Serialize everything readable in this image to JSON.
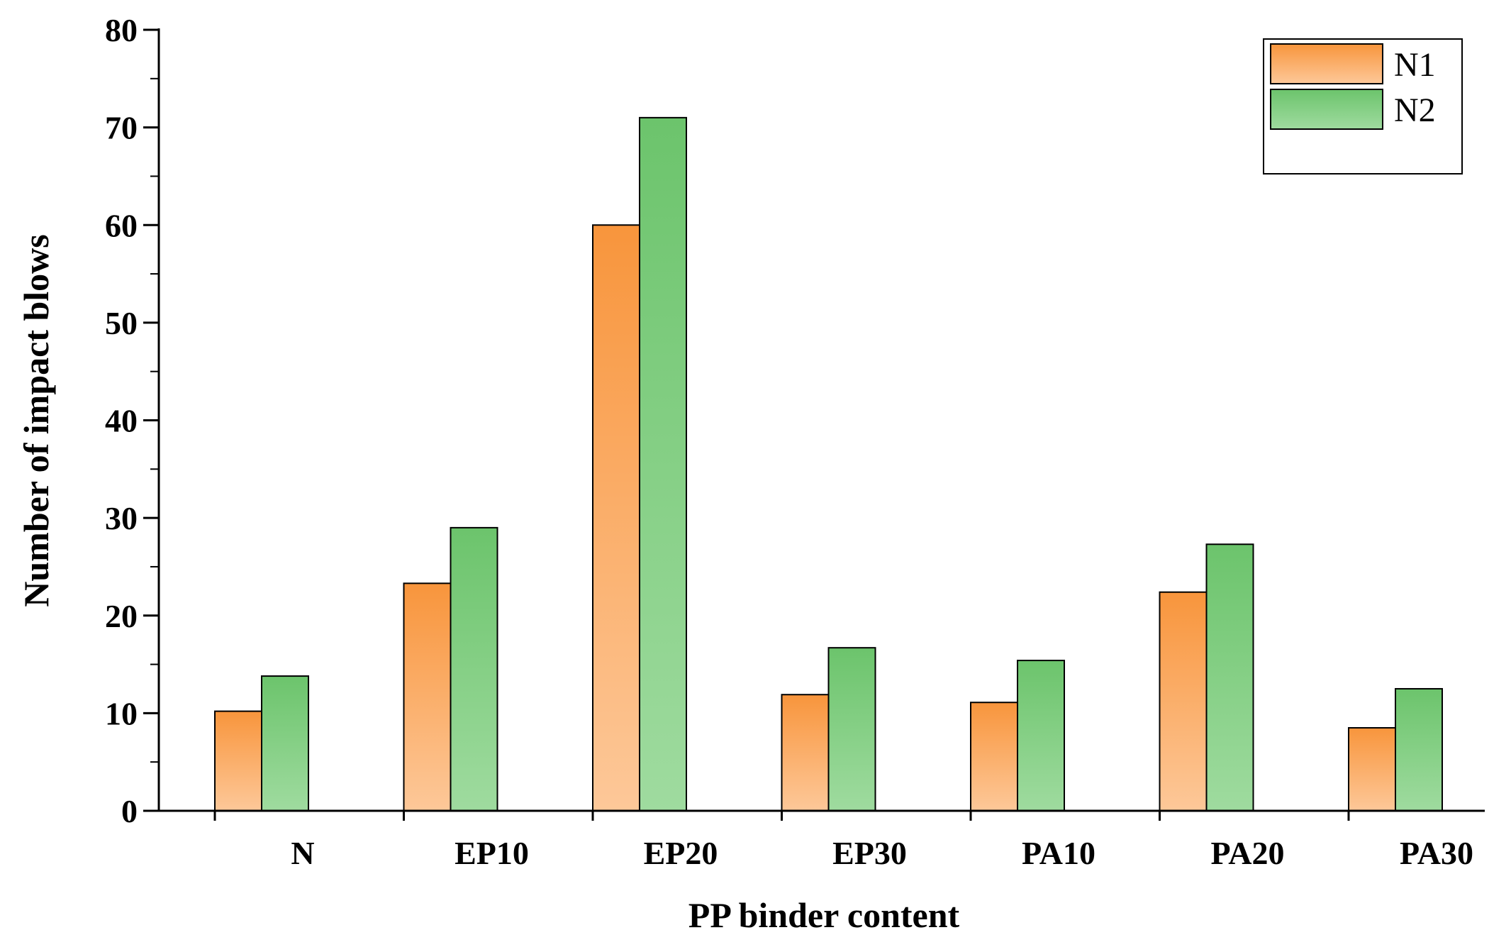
{
  "chart_data": {
    "type": "bar",
    "title": "",
    "xlabel": "PP binder content",
    "ylabel": "Number of impact blows",
    "categories": [
      "N",
      "EP10",
      "EP20",
      "EP30",
      "PA10",
      "PA20",
      "PA30"
    ],
    "series": [
      {
        "name": "N1",
        "values": [
          10.2,
          23.3,
          60,
          11.9,
          11.1,
          22.4,
          8.5
        ],
        "color": "#f99b45"
      },
      {
        "name": "N2",
        "values": [
          13.8,
          29.0,
          71,
          16.7,
          15.4,
          27.3,
          12.5
        ],
        "color": "#72c472"
      }
    ],
    "ylim": [
      0,
      80
    ],
    "yticks": [
      0,
      10,
      20,
      30,
      40,
      50,
      60,
      70,
      80
    ],
    "grid": false,
    "legend_position": "top-right"
  }
}
